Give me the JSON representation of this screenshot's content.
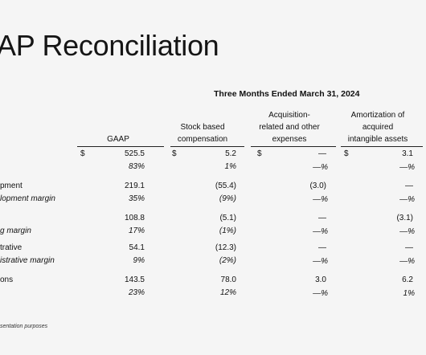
{
  "title": "AP Reconciliation",
  "period": "Three Months Ended March 31, 2024",
  "columns": {
    "gaap": "GAAP",
    "sbc": [
      "Stock based",
      "compensation"
    ],
    "acq": [
      "Acquisition-",
      "related and other",
      "expenses"
    ],
    "amort": [
      "Amortization of",
      "acquired",
      "intangible assets"
    ]
  },
  "rows": [
    {
      "label": "",
      "gaap": "525.5",
      "sbc": "5.2",
      "acq": "—",
      "amort": "3.1",
      "currency": "$"
    },
    {
      "label": "",
      "gaap": "83%",
      "sbc": "1%",
      "acq": "—%",
      "amort": "—%"
    },
    {
      "label": "pment",
      "gaap": "219.1",
      "sbc": "(55.4)",
      "acq": "(3.0)",
      "amort": "—"
    },
    {
      "label": "lopment margin",
      "gaap": "35%",
      "sbc": "(9%)",
      "acq": "—%",
      "amort": "—%"
    },
    {
      "label": "",
      "gaap": "108.8",
      "sbc": "(5.1)",
      "acq": "—",
      "amort": "(3.1)"
    },
    {
      "label": "g margin",
      "gaap": "17%",
      "sbc": "(1%)",
      "acq": "—%",
      "amort": "—%"
    },
    {
      "label": "trative",
      "gaap": "54.1",
      "sbc": "(12.3)",
      "acq": "—",
      "amort": "—"
    },
    {
      "label": "istrative margin",
      "gaap": "9%",
      "sbc": "(2%)",
      "acq": "—%",
      "amort": "—%"
    },
    {
      "label": "ons",
      "gaap": "143.5",
      "sbc": "78.0",
      "acq": "3.0",
      "amort": "6.2"
    },
    {
      "label": "",
      "gaap": "23%",
      "sbc": "12%",
      "acq": "—%",
      "amort": "1%"
    }
  ],
  "footnote": "sentation purposes"
}
